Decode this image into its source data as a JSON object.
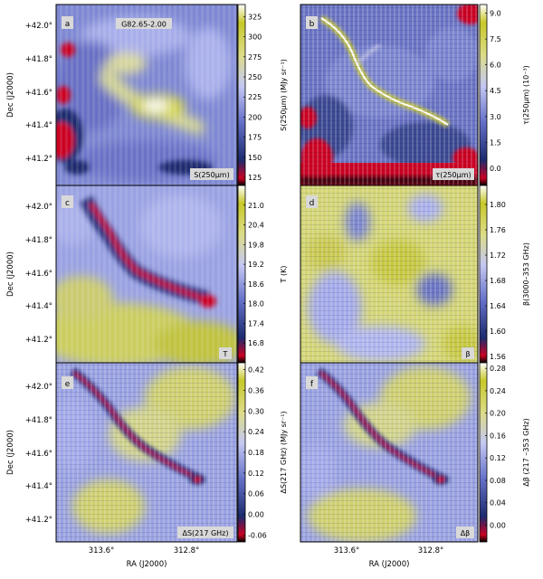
{
  "figure": {
    "y_axis_label": "Dec (J2000)",
    "x_axis_label": "RA (J2000)",
    "dec_ticks": [
      "+42.0°",
      "+41.8°",
      "+41.6°",
      "+41.4°",
      "+41.2°"
    ],
    "ra_ticks": [
      "313.6°",
      "312.8°"
    ]
  },
  "panels": [
    {
      "id": "a",
      "letter": "a",
      "title": "G82.65-2.00",
      "corner_label": "S(250μm)",
      "colorbar_label": "S(250μm) (MJy sr⁻¹)",
      "colorbar_ticks": [
        "325",
        "300",
        "275",
        "250",
        "225",
        "200",
        "175",
        "150",
        "125"
      ],
      "colorbar_range": [
        115,
        340
      ],
      "colormap": "blue-white-yellow with red/black low end"
    },
    {
      "id": "b",
      "letter": "b",
      "title": "",
      "corner_label": "τ(250μm)",
      "colorbar_label": "τ(250μm) (10⁻³)",
      "colorbar_ticks": [
        "9.0",
        "7.5",
        "6.0",
        "4.5",
        "3.0",
        "1.5",
        "0.0"
      ],
      "colorbar_range": [
        -1.0,
        9.5
      ],
      "colormap": "blue-white-yellow with red/black low end"
    },
    {
      "id": "c",
      "letter": "c",
      "title": "",
      "corner_label": "T",
      "colorbar_label": "T (K)",
      "colorbar_ticks": [
        "21.0",
        "20.4",
        "19.8",
        "19.2",
        "18.6",
        "18.0",
        "17.4",
        "16.8"
      ],
      "colorbar_range": [
        16.2,
        21.6
      ],
      "colormap": "blue-white-yellow with red/black low end"
    },
    {
      "id": "d",
      "letter": "d",
      "title": "",
      "corner_label": "β",
      "colorbar_label": "β(3000–353 GHz)",
      "colorbar_ticks": [
        "1.80",
        "1.76",
        "1.72",
        "1.68",
        "1.64",
        "1.60",
        "1.56"
      ],
      "colorbar_range": [
        1.55,
        1.83
      ],
      "colormap": "blue-white-yellow with red/black low end"
    },
    {
      "id": "e",
      "letter": "e",
      "title": "",
      "corner_label": "ΔS(217 GHz)",
      "colorbar_label": "ΔS(217 GHz) (MJy sr⁻¹)",
      "colorbar_ticks": [
        "0.42",
        "0.36",
        "0.30",
        "0.24",
        "0.18",
        "0.12",
        "0.06",
        "0.00",
        "-0.06"
      ],
      "colorbar_range": [
        -0.08,
        0.44
      ],
      "colormap": "blue-white-yellow with red/black low end"
    },
    {
      "id": "f",
      "letter": "f",
      "title": "",
      "corner_label": "Δβ",
      "colorbar_label": "Δβ (217 –353 GHz)",
      "colorbar_ticks": [
        "0.28",
        "0.24",
        "0.20",
        "0.16",
        "0.12",
        "0.08",
        "0.04",
        "0.00"
      ],
      "colorbar_range": [
        -0.03,
        0.29
      ],
      "colormap": "blue-white-yellow with red/black low end"
    }
  ]
}
